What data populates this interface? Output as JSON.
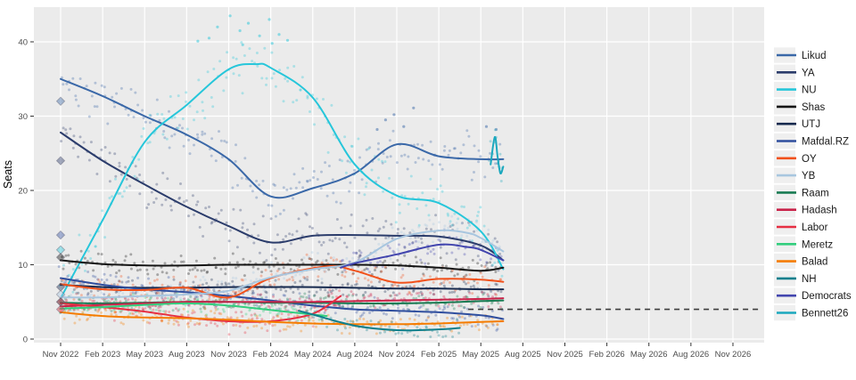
{
  "y_axis": {
    "label": "Seats",
    "ticks": [
      0,
      10,
      20,
      30,
      40
    ],
    "range": [
      0,
      45
    ]
  },
  "x_axis": {
    "tick_labels": [
      "Nov 2022",
      "Feb 2023",
      "May 2023",
      "Aug 2023",
      "Nov 2023",
      "Feb 2024",
      "May 2024",
      "Aug 2024",
      "Nov 2024",
      "Feb 2025",
      "May 2025",
      "Aug 2025",
      "Nov 2025",
      "Feb 2026",
      "May 2026",
      "Aug 2026",
      "Nov 2026"
    ],
    "tick_months": [
      0,
      3,
      6,
      9,
      12,
      15,
      18,
      21,
      24,
      27,
      30,
      33,
      36,
      39,
      42,
      45,
      48
    ]
  },
  "threshold": {
    "seats": 4,
    "from_month": 29.1,
    "to_month": 50,
    "color": "#3C3C3C",
    "style": "dashed"
  },
  "election_markers": {
    "month": 0,
    "results": [
      {
        "party": "Likud",
        "seats": 32
      },
      {
        "party": "YA",
        "seats": 24
      },
      {
        "party": "Mafdal.RZ",
        "seats": 14
      },
      {
        "party": "NU",
        "seats": 12
      },
      {
        "party": "Shas",
        "seats": 11
      },
      {
        "party": "UTJ",
        "seats": 7
      },
      {
        "party": "YB",
        "seats": 6
      },
      {
        "party": "Raam",
        "seats": 5
      },
      {
        "party": "Hadash",
        "seats": 5
      },
      {
        "party": "Labor",
        "seats": 4
      }
    ]
  },
  "legend": {
    "items": [
      {
        "label": "Likud"
      },
      {
        "label": "YA"
      },
      {
        "label": "NU"
      },
      {
        "label": "Shas"
      },
      {
        "label": "UTJ"
      },
      {
        "label": "Mafdal.RZ"
      },
      {
        "label": "OY"
      },
      {
        "label": "YB"
      },
      {
        "label": "Raam"
      },
      {
        "label": "Hadash"
      },
      {
        "label": "Labor"
      },
      {
        "label": "Meretz"
      },
      {
        "label": "Balad"
      },
      {
        "label": "NH"
      },
      {
        "label": "Democrats"
      },
      {
        "label": "Bennett26"
      }
    ]
  },
  "chart_data": {
    "type": "scatter",
    "title": "",
    "xlabel": "",
    "ylabel": "Seats",
    "x_unit": "months since Nov 2022 (0 = Nov 2022)",
    "ylim": [
      0,
      45
    ],
    "grid": "major-only",
    "legend_position": "right",
    "series": [
      {
        "name": "Likud",
        "color": "#3A68A8",
        "jitter": 2.4,
        "points": [
          [
            0,
            35
          ],
          [
            3,
            32.7
          ],
          [
            6,
            30
          ],
          [
            9,
            27.5
          ],
          [
            12,
            24.2
          ],
          [
            15,
            19.2
          ],
          [
            18,
            20.3
          ],
          [
            21,
            22.3
          ],
          [
            24,
            26.2
          ],
          [
            27,
            24.6
          ],
          [
            30,
            24.2
          ],
          [
            31.6,
            24.2
          ]
        ],
        "extra_scatter": [
          [
            23.2,
            29.5
          ],
          [
            23.8,
            30.2
          ],
          [
            24.5,
            28.6
          ],
          [
            25.2,
            31.1
          ],
          [
            22.6,
            28.2
          ],
          [
            30.4,
            28.6
          ],
          [
            31.1,
            28.2
          ]
        ]
      },
      {
        "name": "YA",
        "color": "#2B3C6B",
        "jitter": 2.2,
        "points": [
          [
            0,
            27.8
          ],
          [
            3,
            24
          ],
          [
            6,
            20.8
          ],
          [
            9,
            17.8
          ],
          [
            12,
            15.2
          ],
          [
            15,
            13
          ],
          [
            18,
            13.9
          ],
          [
            21,
            14
          ],
          [
            24,
            13.9
          ],
          [
            27,
            13.8
          ],
          [
            30,
            12.6
          ],
          [
            31.6,
            10.6
          ]
        ]
      },
      {
        "name": "NU",
        "color": "#26C6DA",
        "jitter": 2.8,
        "points": [
          [
            0,
            5.5
          ],
          [
            3,
            16
          ],
          [
            6,
            26.5
          ],
          [
            9,
            31.5
          ],
          [
            12,
            36.3
          ],
          [
            14,
            37
          ],
          [
            15,
            36.5
          ],
          [
            18,
            32.5
          ],
          [
            21,
            23.5
          ],
          [
            24,
            19.3
          ],
          [
            27,
            18.3
          ],
          [
            30,
            14.5
          ],
          [
            31.6,
            9.4
          ]
        ],
        "extra_scatter": [
          [
            10.6,
            40.5
          ],
          [
            11.2,
            42
          ],
          [
            12.1,
            43.5
          ],
          [
            12.8,
            41.5
          ],
          [
            13.4,
            42.5
          ],
          [
            14.2,
            40.8
          ],
          [
            14.9,
            43
          ],
          [
            15.6,
            41
          ],
          [
            16.2,
            40.2
          ],
          [
            9.8,
            40.1
          ],
          [
            13.0,
            39.6
          ],
          [
            15.1,
            39.8
          ]
        ]
      },
      {
        "name": "Shas",
        "color": "#141414",
        "jitter": 1.0,
        "points": [
          [
            0,
            10.6
          ],
          [
            3,
            10.1
          ],
          [
            6,
            9.9
          ],
          [
            9,
            9.9
          ],
          [
            12,
            10
          ],
          [
            15,
            10
          ],
          [
            18,
            10
          ],
          [
            21,
            10
          ],
          [
            24,
            9.9
          ],
          [
            27,
            9.6
          ],
          [
            30,
            9.2
          ],
          [
            31.6,
            9.6
          ]
        ]
      },
      {
        "name": "UTJ",
        "color": "#16294E",
        "jitter": 0.8,
        "points": [
          [
            0,
            7.3
          ],
          [
            3,
            7
          ],
          [
            6,
            6.9
          ],
          [
            9,
            6.9
          ],
          [
            12,
            7
          ],
          [
            15,
            7
          ],
          [
            18,
            7
          ],
          [
            21,
            6.9
          ],
          [
            24,
            6.8
          ],
          [
            27,
            6.8
          ],
          [
            30,
            6.7
          ],
          [
            31.6,
            6.7
          ]
        ]
      },
      {
        "name": "Mafdal.RZ",
        "color": "#2F4E9E",
        "jitter": 1.2,
        "points": [
          [
            0,
            8.2
          ],
          [
            3,
            7.3
          ],
          [
            6,
            6.7
          ],
          [
            9,
            6.3
          ],
          [
            12,
            5.8
          ],
          [
            15,
            5.2
          ],
          [
            18,
            4.5
          ],
          [
            21,
            4.0
          ],
          [
            24,
            3.8
          ],
          [
            27,
            3.6
          ],
          [
            30,
            3.2
          ],
          [
            31.6,
            2.7
          ]
        ]
      },
      {
        "name": "OY",
        "color": "#F1511B",
        "jitter": 1.3,
        "points": [
          [
            0,
            7.4
          ],
          [
            3,
            6.7
          ],
          [
            6,
            6.6
          ],
          [
            9,
            6.9
          ],
          [
            12,
            5.6
          ],
          [
            15,
            8.2
          ],
          [
            19,
            9.8
          ],
          [
            21,
            9.2
          ],
          [
            24,
            7.6
          ],
          [
            27,
            8.1
          ],
          [
            30,
            8.0
          ],
          [
            31.6,
            7.7
          ]
        ]
      },
      {
        "name": "YB",
        "color": "#A8C6DF",
        "jitter": 1.5,
        "points": [
          [
            0,
            5.6
          ],
          [
            3,
            5.6
          ],
          [
            6,
            5.8
          ],
          [
            9,
            6.0
          ],
          [
            12,
            6.5
          ],
          [
            15,
            8.3
          ],
          [
            18,
            9.4
          ],
          [
            21,
            10.3
          ],
          [
            24,
            13.5
          ],
          [
            27,
            14.6
          ],
          [
            29,
            14.3
          ],
          [
            30,
            13.6
          ],
          [
            31.6,
            11.8
          ]
        ]
      },
      {
        "name": "Raam",
        "color": "#187B53",
        "jitter": 0.8,
        "points": [
          [
            0,
            4.9
          ],
          [
            3,
            4.8
          ],
          [
            6,
            4.9
          ],
          [
            9,
            5.0
          ],
          [
            12,
            5.0
          ],
          [
            15,
            4.9
          ],
          [
            18,
            4.9
          ],
          [
            21,
            4.8
          ],
          [
            24,
            4.8
          ],
          [
            27,
            4.9
          ],
          [
            30,
            5.1
          ],
          [
            31.6,
            5.2
          ]
        ]
      },
      {
        "name": "Hadash",
        "color": "#C9234A",
        "jitter": 0.9,
        "points": [
          [
            0,
            4.4
          ],
          [
            3,
            4.6
          ],
          [
            6,
            4.8
          ],
          [
            9,
            5.0
          ],
          [
            12,
            5.0
          ],
          [
            15,
            5.0
          ],
          [
            18,
            5.0
          ],
          [
            21,
            5.1
          ],
          [
            24,
            5.2
          ],
          [
            27,
            5.3
          ],
          [
            30,
            5.4
          ],
          [
            31.6,
            5.5
          ]
        ]
      },
      {
        "name": "Labor",
        "color": "#E62E42",
        "jitter": 1.2,
        "points": [
          [
            0,
            4.8
          ],
          [
            3,
            4.3
          ],
          [
            6,
            3.7
          ],
          [
            9,
            2.9
          ],
          [
            12,
            2.4
          ],
          [
            15,
            2.4
          ],
          [
            18,
            3.4
          ],
          [
            20,
            5.8
          ]
        ]
      },
      {
        "name": "Meretz",
        "color": "#33CE7E",
        "jitter": 1.0,
        "points": [
          [
            0,
            4.1
          ],
          [
            3,
            4.3
          ],
          [
            6,
            4.6
          ],
          [
            9,
            4.8
          ],
          [
            12,
            4.5
          ],
          [
            15,
            3.9
          ],
          [
            17,
            3.5
          ],
          [
            19,
            3.1
          ]
        ]
      },
      {
        "name": "Balad",
        "color": "#F57C00",
        "jitter": 0.9,
        "points": [
          [
            0,
            3.6
          ],
          [
            3,
            3.1
          ],
          [
            6,
            2.9
          ],
          [
            9,
            2.8
          ],
          [
            12,
            2.6
          ],
          [
            15,
            2.3
          ],
          [
            18,
            2.1
          ],
          [
            21,
            2.0
          ],
          [
            24,
            2.0
          ],
          [
            27,
            2.1
          ],
          [
            30,
            2.3
          ],
          [
            31.6,
            2.4
          ]
        ]
      },
      {
        "name": "NH",
        "color": "#0E7F8C",
        "jitter": 1.0,
        "scatter_step": 0.2,
        "points": [
          [
            17,
            3.8
          ],
          [
            18,
            3.3
          ],
          [
            21,
            1.8
          ],
          [
            24,
            1.2
          ],
          [
            27,
            1.3
          ],
          [
            28.5,
            1.5
          ]
        ]
      },
      {
        "name": "Democrats",
        "color": "#4245AE",
        "jitter": 1.4,
        "points": [
          [
            20,
            9.6
          ],
          [
            21,
            10.2
          ],
          [
            24,
            11.4
          ],
          [
            27,
            12.7
          ],
          [
            29,
            12.4
          ],
          [
            30,
            12.0
          ],
          [
            31.6,
            10.6
          ]
        ]
      },
      {
        "name": "Bennett26",
        "color": "#1BA8BE",
        "jitter": 1.6,
        "scatter_step": 0.08,
        "points": [
          [
            30.7,
            23.5
          ],
          [
            31.0,
            27.2
          ],
          [
            31.2,
            24.5
          ],
          [
            31.4,
            22.3
          ],
          [
            31.6,
            23.2
          ]
        ]
      }
    ]
  }
}
